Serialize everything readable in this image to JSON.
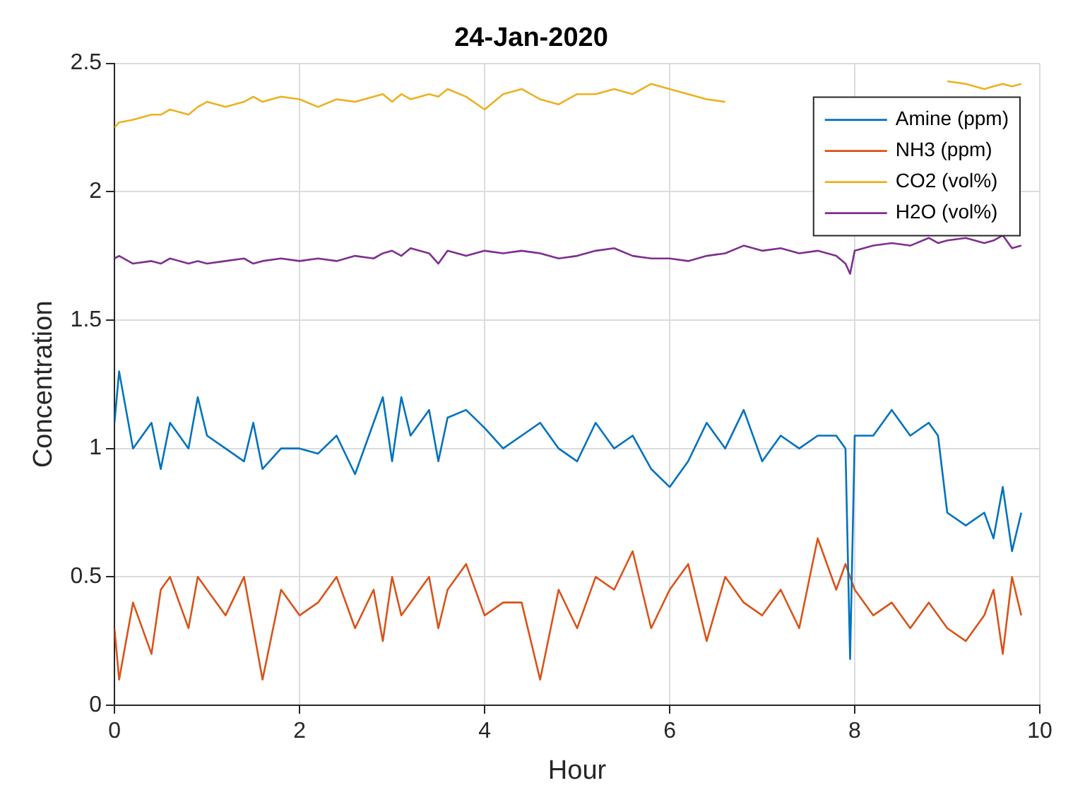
{
  "chart_data": {
    "type": "line",
    "title": "24-Jan-2020",
    "xlabel": "Hour",
    "ylabel": "Concentration",
    "x": [
      0,
      0.05,
      0.2,
      0.4,
      0.5,
      0.6,
      0.8,
      0.9,
      1.0,
      1.2,
      1.4,
      1.5,
      1.6,
      1.8,
      2.0,
      2.2,
      2.4,
      2.6,
      2.8,
      2.9,
      3.0,
      3.1,
      3.2,
      3.4,
      3.5,
      3.6,
      3.8,
      4.0,
      4.2,
      4.4,
      4.6,
      4.8,
      5.0,
      5.2,
      5.4,
      5.6,
      5.8,
      6.0,
      6.2,
      6.4,
      6.6,
      6.8,
      7.0,
      7.2,
      7.4,
      7.6,
      7.8,
      7.9,
      7.95,
      8.0,
      8.2,
      8.4,
      8.6,
      8.8,
      8.9,
      9.0,
      9.2,
      9.4,
      9.5,
      9.6,
      9.7,
      9.8
    ],
    "series": [
      {
        "name": "Amine (ppm)",
        "color": "#0072bd",
        "values": [
          1.1,
          1.3,
          1.0,
          1.1,
          0.92,
          1.1,
          1.0,
          1.2,
          1.05,
          1.0,
          0.95,
          1.1,
          0.92,
          1.0,
          1.0,
          0.98,
          1.05,
          0.9,
          1.1,
          1.2,
          0.95,
          1.2,
          1.05,
          1.15,
          0.95,
          1.12,
          1.15,
          1.08,
          1.0,
          1.05,
          1.1,
          1.0,
          0.95,
          1.1,
          1.0,
          1.05,
          0.92,
          0.85,
          0.95,
          1.1,
          1.0,
          1.15,
          0.95,
          1.05,
          1.0,
          1.05,
          1.05,
          1.0,
          0.18,
          1.05,
          1.05,
          1.15,
          1.05,
          1.1,
          1.05,
          0.75,
          0.7,
          0.75,
          0.65,
          0.85,
          0.6,
          0.75
        ]
      },
      {
        "name": "NH3 (ppm)",
        "color": "#d95319",
        "values": [
          0.3,
          0.1,
          0.4,
          0.2,
          0.45,
          0.5,
          0.3,
          0.5,
          0.45,
          0.35,
          0.5,
          0.3,
          0.1,
          0.45,
          0.35,
          0.4,
          0.5,
          0.3,
          0.45,
          0.25,
          0.5,
          0.35,
          0.4,
          0.5,
          0.3,
          0.45,
          0.55,
          0.35,
          0.4,
          0.4,
          0.1,
          0.45,
          0.3,
          0.5,
          0.45,
          0.6,
          0.3,
          0.45,
          0.55,
          0.25,
          0.5,
          0.4,
          0.35,
          0.45,
          0.3,
          0.65,
          0.45,
          0.55,
          0.5,
          0.45,
          0.35,
          0.4,
          0.3,
          0.4,
          0.35,
          0.3,
          0.25,
          0.35,
          0.45,
          0.2,
          0.5,
          0.35
        ]
      },
      {
        "name": "CO2 (vol%)",
        "color": "#edb120",
        "values": [
          2.25,
          2.27,
          2.28,
          2.3,
          2.3,
          2.32,
          2.3,
          2.33,
          2.35,
          2.33,
          2.35,
          2.37,
          2.35,
          2.37,
          2.36,
          2.33,
          2.36,
          2.35,
          2.37,
          2.38,
          2.35,
          2.38,
          2.36,
          2.38,
          2.37,
          2.4,
          2.37,
          2.32,
          2.38,
          2.4,
          2.36,
          2.34,
          2.38,
          2.38,
          2.4,
          2.38,
          2.42,
          2.4,
          2.38,
          2.36,
          2.35,
          null,
          null,
          null,
          null,
          null,
          null,
          null,
          null,
          null,
          null,
          null,
          null,
          null,
          null,
          2.43,
          2.42,
          2.4,
          2.41,
          2.42,
          2.41,
          2.42
        ]
      },
      {
        "name": "H2O (vol%)",
        "color": "#7e2f8e",
        "values": [
          1.74,
          1.75,
          1.72,
          1.73,
          1.72,
          1.74,
          1.72,
          1.73,
          1.72,
          1.73,
          1.74,
          1.72,
          1.73,
          1.74,
          1.73,
          1.74,
          1.73,
          1.75,
          1.74,
          1.76,
          1.77,
          1.75,
          1.78,
          1.76,
          1.72,
          1.77,
          1.75,
          1.77,
          1.76,
          1.77,
          1.76,
          1.74,
          1.75,
          1.77,
          1.78,
          1.75,
          1.74,
          1.74,
          1.73,
          1.75,
          1.76,
          1.79,
          1.77,
          1.78,
          1.76,
          1.77,
          1.75,
          1.72,
          1.68,
          1.77,
          1.79,
          1.8,
          1.79,
          1.82,
          1.8,
          1.81,
          1.82,
          1.8,
          1.81,
          1.83,
          1.78,
          1.79
        ]
      }
    ],
    "xlim": [
      0,
      10
    ],
    "xticks": [
      0,
      2,
      4,
      6,
      8,
      10
    ],
    "ylim": [
      0,
      2.5
    ],
    "yticks": [
      0,
      0.5,
      1,
      1.5,
      2,
      2.5
    ],
    "grid": true,
    "legend": "top right",
    "marker": "none",
    "line_style": "solid"
  }
}
